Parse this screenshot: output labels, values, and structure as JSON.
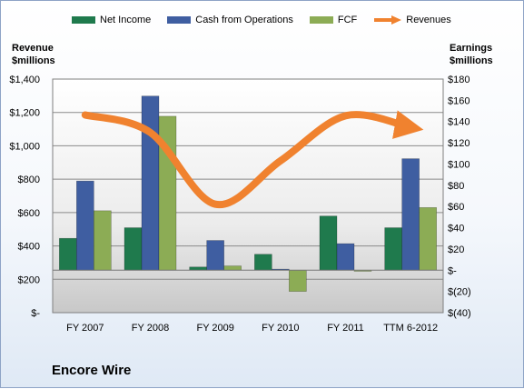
{
  "title": "Encore Wire",
  "legend": [
    {
      "label": "Net Income",
      "color": "#1f7a4d"
    },
    {
      "label": "Cash from Operations",
      "color": "#3f5ea1"
    },
    {
      "label": "FCF",
      "color": "#8cac55"
    },
    {
      "label": "Revenues",
      "color": "#f0822f"
    }
  ],
  "left_axis_title": [
    "Revenue",
    "$millions"
  ],
  "right_axis_title": [
    "Earnings",
    "$millions"
  ],
  "chart_data": {
    "type": "bar",
    "categories": [
      "FY 2007",
      "FY 2008",
      "FY 2009",
      "FY 2010",
      "FY 2011",
      "TTM 6-2012"
    ],
    "left_ylim": [
      0,
      1400
    ],
    "left_ticks": [
      "$-",
      "$200",
      "$400",
      "$600",
      "$800",
      "$1,000",
      "$1,200",
      "$1,400"
    ],
    "left_tick_values": [
      0,
      200,
      400,
      600,
      800,
      1000,
      1200,
      1400
    ],
    "right_ylim": [
      -40,
      180
    ],
    "right_ticks": [
      "$(40)",
      "$(20)",
      "$-",
      "$20",
      "$40",
      "$60",
      "$80",
      "$100",
      "$120",
      "$140",
      "$160",
      "$180"
    ],
    "right_tick_values": [
      -40,
      -20,
      0,
      20,
      40,
      60,
      80,
      100,
      120,
      140,
      160,
      180
    ],
    "series": [
      {
        "name": "Net Income",
        "axis": "right",
        "color": "#1f7a4d",
        "values": [
          30,
          40,
          3,
          15,
          51,
          40
        ]
      },
      {
        "name": "Cash from Operations",
        "axis": "right",
        "color": "#3f5ea1",
        "values": [
          84,
          164,
          28,
          1,
          25,
          105
        ]
      },
      {
        "name": "FCF",
        "axis": "right",
        "color": "#8cac55",
        "values": [
          56,
          145,
          4,
          -20,
          -1,
          59
        ]
      },
      {
        "name": "Revenues",
        "axis": "left",
        "type": "line",
        "color": "#f0822f",
        "values": [
          1185,
          1080,
          650,
          910,
          1180,
          1110
        ]
      }
    ],
    "grid": true
  }
}
